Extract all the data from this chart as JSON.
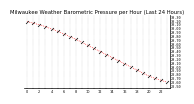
{
  "title": "Milwaukee Weather Barometric Pressure per Hour (Last 24 Hours)",
  "hours": [
    0,
    1,
    2,
    3,
    4,
    5,
    6,
    7,
    8,
    9,
    10,
    11,
    12,
    13,
    14,
    15,
    16,
    17,
    18,
    19,
    20,
    21,
    22,
    23
  ],
  "pressure": [
    30.18,
    30.14,
    30.1,
    30.05,
    29.99,
    29.93,
    29.86,
    29.79,
    29.72,
    29.64,
    29.56,
    29.48,
    29.4,
    29.32,
    29.24,
    29.16,
    29.08,
    29.0,
    28.92,
    28.84,
    28.76,
    28.7,
    28.65,
    28.6
  ],
  "line_color": "#ff0000",
  "marker_color": "#000000",
  "bg_color": "#ffffff",
  "grid_color": "#999999",
  "title_fontsize": 3.8,
  "tick_fontsize": 2.5,
  "ylim_min": 28.45,
  "ylim_max": 30.35
}
